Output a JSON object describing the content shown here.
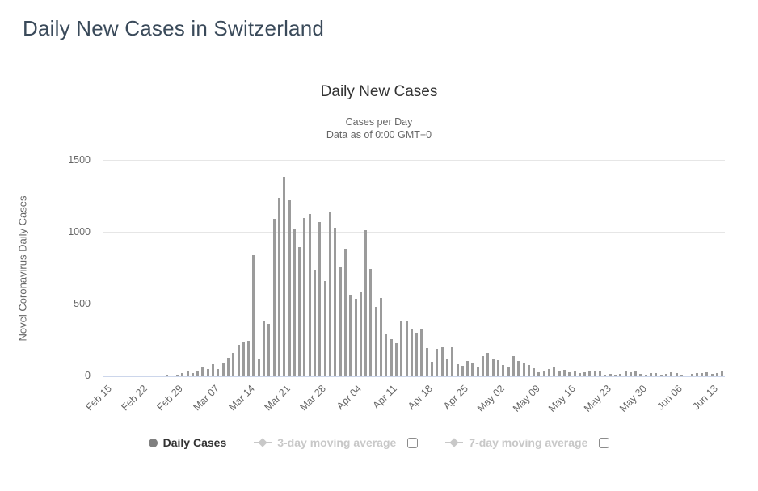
{
  "page": {
    "title": "Daily New Cases in Switzerland"
  },
  "chart": {
    "title": "Daily New Cases",
    "subtitle_line1": "Cases per Day",
    "subtitle_line2": "Data as of 0:00 GMT+0",
    "y_axis_title": "Novel Coronavirus Daily Cases",
    "legend": {
      "daily_cases": "Daily Cases",
      "avg3": "3-day moving average",
      "avg7": "7-day moving average"
    },
    "colors": {
      "bar": "#9b9b9b",
      "axis_line": "#ccd6eb",
      "gridline": "#e6e6e6",
      "title": "#333333",
      "subtitle": "#666666",
      "axis_label": "#666666",
      "page_title": "#3a4a5a",
      "legend_active": "#333333",
      "legend_hidden": "#c8c8c8",
      "daily_marker": "#7f7f7f"
    }
  },
  "chart_data": {
    "type": "bar",
    "title": "Daily New Cases",
    "subtitle": "Cases per Day — Data as of 0:00 GMT+0",
    "series_name": "Daily Cases",
    "hidden_series": [
      "3-day moving average",
      "7-day moving average"
    ],
    "ylabel": "Novel Coronavirus Daily Cases",
    "ylim": [
      0,
      1500
    ],
    "yticks": [
      0,
      500,
      1000,
      1500
    ],
    "grid": true,
    "legend_position": "bottom",
    "x_tick_every": 7,
    "x_tick_labels": [
      "Feb 15",
      "Feb 22",
      "Feb 29",
      "Mar 07",
      "Mar 14",
      "Mar 21",
      "Mar 28",
      "Apr 04",
      "Apr 11",
      "Apr 18",
      "Apr 25",
      "May 02",
      "May 09",
      "May 16",
      "May 23",
      "May 30",
      "Jun 06",
      "Jun 13"
    ],
    "dates": [
      "Feb 15",
      "Feb 16",
      "Feb 17",
      "Feb 18",
      "Feb 19",
      "Feb 20",
      "Feb 21",
      "Feb 22",
      "Feb 23",
      "Feb 24",
      "Feb 25",
      "Feb 26",
      "Feb 27",
      "Feb 28",
      "Feb 29",
      "Mar 01",
      "Mar 02",
      "Mar 03",
      "Mar 04",
      "Mar 05",
      "Mar 06",
      "Mar 07",
      "Mar 08",
      "Mar 09",
      "Mar 10",
      "Mar 11",
      "Mar 12",
      "Mar 13",
      "Mar 14",
      "Mar 15",
      "Mar 16",
      "Mar 17",
      "Mar 18",
      "Mar 19",
      "Mar 20",
      "Mar 21",
      "Mar 22",
      "Mar 23",
      "Mar 24",
      "Mar 25",
      "Mar 26",
      "Mar 27",
      "Mar 28",
      "Mar 29",
      "Mar 30",
      "Mar 31",
      "Apr 01",
      "Apr 02",
      "Apr 03",
      "Apr 04",
      "Apr 05",
      "Apr 06",
      "Apr 07",
      "Apr 08",
      "Apr 09",
      "Apr 10",
      "Apr 11",
      "Apr 12",
      "Apr 13",
      "Apr 14",
      "Apr 15",
      "Apr 16",
      "Apr 17",
      "Apr 18",
      "Apr 19",
      "Apr 20",
      "Apr 21",
      "Apr 22",
      "Apr 23",
      "Apr 24",
      "Apr 25",
      "Apr 26",
      "Apr 27",
      "Apr 28",
      "Apr 29",
      "Apr 30",
      "May 01",
      "May 02",
      "May 03",
      "May 04",
      "May 05",
      "May 06",
      "May 07",
      "May 08",
      "May 09",
      "May 10",
      "May 11",
      "May 12",
      "May 13",
      "May 14",
      "May 15",
      "May 16",
      "May 17",
      "May 18",
      "May 19",
      "May 20",
      "May 21",
      "May 22",
      "May 23",
      "May 24",
      "May 25",
      "May 26",
      "May 27",
      "May 28",
      "May 29",
      "May 30",
      "May 31",
      "Jun 01",
      "Jun 02",
      "Jun 03",
      "Jun 04",
      "Jun 05",
      "Jun 06",
      "Jun 07",
      "Jun 08",
      "Jun 09",
      "Jun 10",
      "Jun 11",
      "Jun 12",
      "Jun 13",
      "Jun 14",
      "Jun 15"
    ],
    "values": [
      0,
      0,
      0,
      0,
      0,
      0,
      0,
      0,
      0,
      0,
      1,
      5,
      10,
      7,
      12,
      25,
      40,
      25,
      33,
      68,
      48,
      85,
      48,
      98,
      130,
      165,
      220,
      240,
      245,
      840,
      125,
      380,
      365,
      1095,
      1240,
      1390,
      1225,
      1030,
      900,
      1100,
      1130,
      740,
      1075,
      665,
      1140,
      1035,
      760,
      885,
      570,
      540,
      585,
      1015,
      750,
      485,
      545,
      295,
      260,
      230,
      390,
      380,
      330,
      305,
      330,
      195,
      100,
      190,
      205,
      125,
      205,
      85,
      75,
      105,
      90,
      70,
      140,
      165,
      125,
      110,
      80,
      65,
      140,
      105,
      90,
      78,
      55,
      30,
      40,
      50,
      63,
      35,
      45,
      28,
      38,
      24,
      28,
      35,
      40,
      38,
      13,
      18,
      12,
      15,
      35,
      30,
      38,
      18,
      10,
      20,
      25,
      12,
      18,
      30,
      22,
      12,
      8,
      15,
      25,
      20,
      28,
      15,
      22,
      33
    ]
  }
}
